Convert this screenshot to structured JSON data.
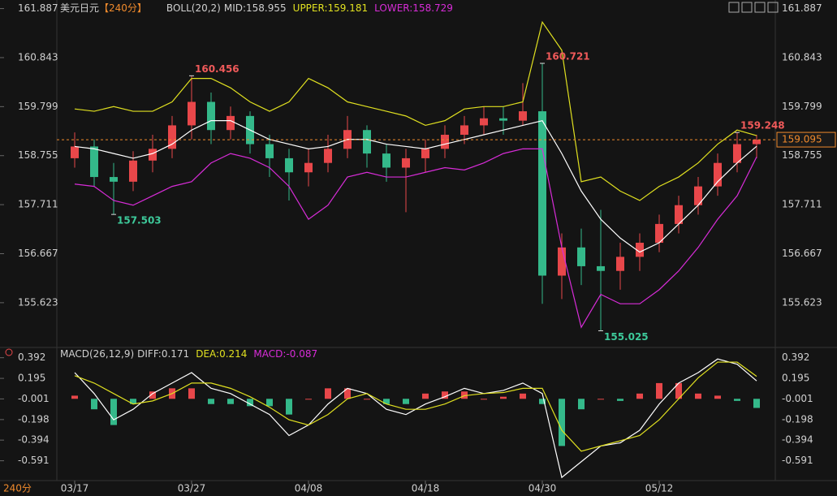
{
  "chart_data": {
    "type": "candlestick",
    "header": {
      "symbol": "美元日元",
      "period": "【240分】",
      "indicator": "BOLL(20,2)",
      "mid": "MID:158.955",
      "upper": "UPPER:159.181",
      "lower": "LOWER:158.729"
    },
    "macd_header": {
      "indicator": "MACD(26,12,9)",
      "diff": "DIFF:0.171",
      "dea": "DEA:0.214",
      "macd": "MACD:-0.087"
    },
    "period_label": "240分",
    "categories": [
      "03/17",
      null,
      null,
      null,
      null,
      null,
      "03/27",
      null,
      null,
      null,
      null,
      null,
      "04/08",
      null,
      null,
      null,
      null,
      null,
      "04/18",
      null,
      null,
      null,
      null,
      null,
      "04/30",
      null,
      null,
      null,
      null,
      null,
      "05/12",
      null,
      null,
      null,
      null,
      null
    ],
    "open": [
      158.7,
      158.95,
      158.3,
      158.2,
      158.65,
      158.9,
      159.4,
      159.9,
      159.3,
      159.6,
      159.0,
      158.7,
      158.4,
      158.6,
      158.9,
      159.3,
      158.8,
      158.5,
      158.7,
      158.9,
      159.2,
      159.4,
      159.55,
      159.5,
      159.7,
      156.2,
      156.8,
      156.4,
      156.3,
      156.6,
      156.9,
      157.3,
      157.7,
      158.1,
      158.6,
      159.0
    ],
    "high": [
      159.25,
      159.1,
      158.6,
      158.85,
      159.2,
      159.6,
      160.456,
      160.1,
      159.8,
      159.7,
      159.2,
      158.9,
      158.9,
      159.2,
      159.6,
      159.4,
      159.0,
      158.9,
      159.1,
      159.4,
      159.6,
      159.8,
      159.8,
      160.3,
      160.721,
      157.1,
      157.2,
      157.6,
      156.9,
      157.1,
      157.5,
      157.9,
      158.3,
      158.8,
      159.248,
      159.2
    ],
    "low": [
      158.5,
      158.1,
      157.503,
      158.0,
      158.4,
      158.7,
      159.1,
      159.0,
      159.1,
      158.8,
      158.3,
      157.8,
      158.1,
      158.4,
      158.7,
      158.5,
      158.2,
      157.55,
      158.4,
      158.7,
      159.0,
      159.2,
      159.2,
      159.4,
      155.6,
      155.7,
      156.0,
      155.025,
      155.9,
      156.3,
      156.7,
      157.1,
      157.5,
      157.9,
      158.4,
      158.7
    ],
    "close": [
      158.95,
      158.3,
      158.2,
      158.65,
      158.9,
      159.4,
      159.9,
      159.3,
      159.6,
      159.0,
      158.7,
      158.4,
      158.6,
      158.9,
      159.3,
      158.8,
      158.5,
      158.7,
      158.9,
      159.2,
      159.4,
      159.55,
      159.5,
      159.7,
      156.2,
      156.8,
      156.4,
      156.3,
      156.6,
      156.9,
      157.3,
      157.7,
      158.1,
      158.6,
      159.0,
      159.095
    ],
    "up_color": "#e8474a",
    "down_color": "#34b98a",
    "series": [
      {
        "name": "UPPER",
        "color": "#e0e020",
        "values": [
          159.75,
          159.7,
          159.8,
          159.7,
          159.7,
          159.9,
          160.4,
          160.4,
          160.2,
          159.9,
          159.7,
          159.9,
          160.4,
          160.2,
          159.9,
          159.8,
          159.7,
          159.6,
          159.4,
          159.5,
          159.75,
          159.8,
          159.8,
          159.9,
          161.6,
          161.0,
          158.2,
          158.3,
          158.0,
          157.8,
          158.1,
          158.3,
          158.6,
          159.0,
          159.3,
          159.181
        ]
      },
      {
        "name": "MID",
        "color": "#ffffff",
        "values": [
          158.95,
          158.9,
          158.8,
          158.7,
          158.8,
          159.0,
          159.3,
          159.5,
          159.5,
          159.3,
          159.1,
          159.0,
          158.9,
          158.95,
          159.1,
          159.1,
          159.0,
          158.95,
          158.9,
          159.0,
          159.1,
          159.2,
          159.3,
          159.4,
          159.5,
          158.8,
          158.0,
          157.4,
          157.0,
          156.7,
          156.9,
          157.3,
          157.7,
          158.2,
          158.6,
          158.955
        ]
      },
      {
        "name": "LOWER",
        "color": "#d82cd8",
        "values": [
          158.15,
          158.1,
          157.8,
          157.7,
          157.9,
          158.1,
          158.2,
          158.6,
          158.8,
          158.7,
          158.5,
          158.1,
          157.4,
          157.7,
          158.3,
          158.4,
          158.3,
          158.3,
          158.4,
          158.5,
          158.45,
          158.6,
          158.8,
          158.9,
          158.9,
          156.8,
          155.1,
          155.8,
          155.6,
          155.6,
          155.9,
          156.3,
          156.8,
          157.4,
          157.9,
          158.729
        ]
      }
    ],
    "ylim": [
      154.67,
      162.07
    ],
    "yticks": [
      155.623,
      156.667,
      157.711,
      158.755,
      159.799,
      160.843,
      161.887
    ],
    "macd": {
      "diff": {
        "name": "DIFF",
        "color": "#ffffff",
        "values": [
          0.25,
          0.05,
          -0.2,
          -0.1,
          0.05,
          0.15,
          0.25,
          0.1,
          0.05,
          -0.05,
          -0.15,
          -0.35,
          -0.25,
          -0.05,
          0.1,
          0.05,
          -0.1,
          -0.15,
          -0.05,
          0.02,
          0.1,
          0.05,
          0.08,
          0.15,
          0.05,
          -0.75,
          -0.6,
          -0.45,
          -0.42,
          -0.3,
          -0.05,
          0.15,
          0.25,
          0.38,
          0.33,
          0.171
        ]
      },
      "dea": {
        "name": "DEA",
        "color": "#e0e020",
        "values": [
          0.22,
          0.15,
          0.05,
          -0.05,
          -0.02,
          0.05,
          0.15,
          0.15,
          0.1,
          0.02,
          -0.08,
          -0.2,
          -0.25,
          -0.15,
          0.0,
          0.05,
          -0.05,
          -0.1,
          -0.1,
          -0.05,
          0.03,
          0.05,
          0.06,
          0.1,
          0.1,
          -0.3,
          -0.5,
          -0.45,
          -0.4,
          -0.35,
          -0.2,
          0.0,
          0.2,
          0.35,
          0.35,
          0.214
        ]
      },
      "hist": [
        0.03,
        -0.1,
        -0.25,
        -0.05,
        0.07,
        0.1,
        0.1,
        -0.05,
        -0.05,
        -0.07,
        -0.07,
        -0.15,
        0.0,
        0.1,
        0.1,
        0.0,
        -0.05,
        -0.05,
        0.05,
        0.07,
        0.07,
        0.0,
        0.02,
        0.05,
        -0.05,
        -0.45,
        -0.1,
        0.0,
        -0.02,
        0.05,
        0.15,
        0.15,
        0.05,
        0.03,
        -0.02,
        -0.087
      ],
      "ylim": [
        -0.78,
        0.49
      ],
      "yticks": [
        -0.591,
        -0.394,
        -0.198,
        -0.001,
        0.195,
        0.392
      ]
    }
  }
}
